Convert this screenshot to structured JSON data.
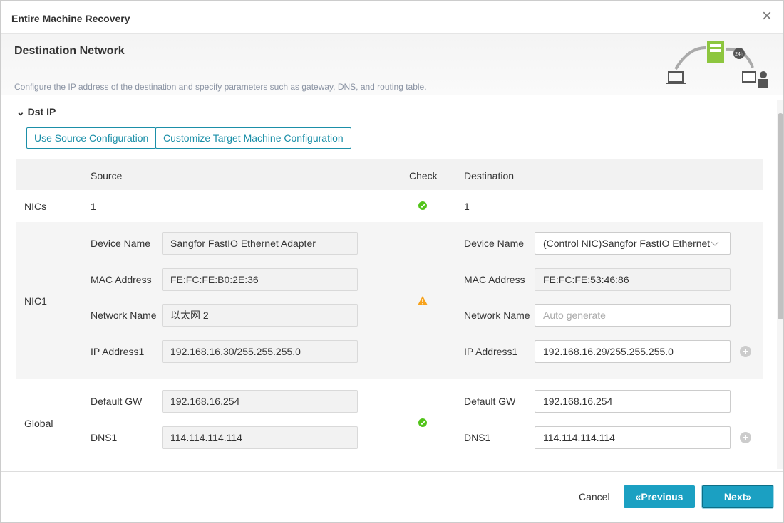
{
  "dialog": {
    "title": "Entire Machine Recovery"
  },
  "header": {
    "title": "Destination Network",
    "description": "Configure the IP address of the destination and specify parameters such as gateway, DNS, and routing table.",
    "badge": "24h"
  },
  "section": {
    "title": "Dst IP"
  },
  "buttons": [
    "Use Source Configuration",
    "Customize Target Machine Configuration"
  ],
  "table": {
    "headers": {
      "source": "Source",
      "check": "Check",
      "destination": "Destination"
    },
    "rows": [
      {
        "label": "NICs",
        "source": "1",
        "destination": "1"
      },
      {
        "label": "NIC1",
        "fields": [
          {
            "label": "Device Name",
            "source": "Sangfor FastIO Ethernet Adapter",
            "destination": "(Control NIC)Sangfor FastIO Ethernet"
          },
          {
            "label": "MAC Address",
            "source": "FE:FC:FE:B0:2E:36",
            "destination": "FE:FC:FE:53:46:86"
          },
          {
            "label": "Network Name",
            "source": "以太网 2",
            "destination": "Auto generate"
          },
          {
            "label": "IP Address1",
            "source": "192.168.16.30/255.255.255.0",
            "destination": "192.168.16.29/255.255.255.0"
          }
        ]
      },
      {
        "label": "Global",
        "fields": [
          {
            "label": "Default GW",
            "source": "192.168.16.254",
            "destination": "192.168.16.254"
          },
          {
            "label": "DNS1",
            "source": "114.114.114.114",
            "destination": "114.114.114.114"
          }
        ]
      }
    ]
  },
  "footer": {
    "cancel": "Cancel",
    "previous": "«Previous",
    "next": "Next»"
  }
}
